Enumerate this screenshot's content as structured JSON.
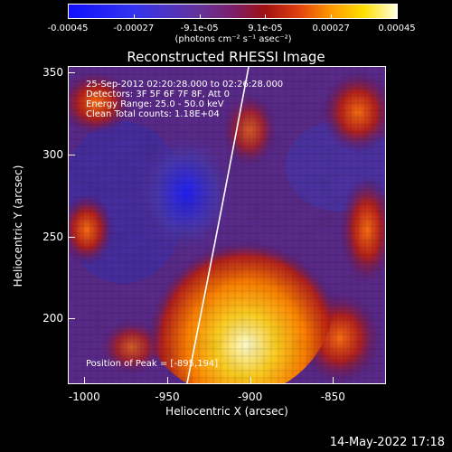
{
  "colorbar": {
    "ticks": [
      {
        "label": "-0.00045",
        "pos": 0
      },
      {
        "label": "-0.00027",
        "pos": 0.2
      },
      {
        "label": "-9.1e-05",
        "pos": 0.4
      },
      {
        "label": "9.1e-05",
        "pos": 0.6
      },
      {
        "label": "0.00027",
        "pos": 0.8
      },
      {
        "label": "0.00045",
        "pos": 1
      }
    ],
    "units": "(photons cm⁻² s⁻¹ asec⁻²)"
  },
  "title": "Reconstructed RHESSI Image",
  "annotations": {
    "time": "25-Sep-2012 02:20:28.000 to 02:26:28.000",
    "detectors": "Detectors: 3F 5F 6F 7F 8F, Att 0",
    "energy": "Energy Range: 25.0 - 50.0 keV",
    "clean": "Clean     Total counts: 1.18E+04",
    "peak": "Position of Peak = [-895,194]"
  },
  "axes": {
    "xlabel": "Heliocentric X (arcsec)",
    "ylabel": "Heliocentric Y (arcsec)",
    "xlim": [
      -1010,
      -818
    ],
    "ylim": [
      160,
      354
    ],
    "xticks": [
      {
        "label": "-1000",
        "value": -1000
      },
      {
        "label": "-950",
        "value": -950
      },
      {
        "label": "-900",
        "value": -900
      },
      {
        "label": "-850",
        "value": -850
      }
    ],
    "yticks": [
      {
        "label": "350",
        "value": 350
      },
      {
        "label": "300",
        "value": 300
      },
      {
        "label": "250",
        "value": 250
      },
      {
        "label": "200",
        "value": 200
      }
    ]
  },
  "timestamp": "14-May-2022 17:18"
}
